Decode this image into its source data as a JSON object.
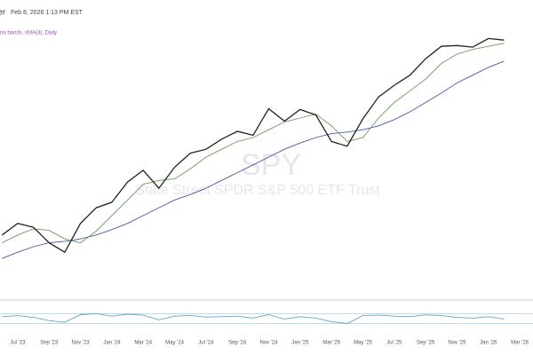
{
  "chart_data": {
    "type": "line",
    "header_fragment": "er",
    "timestamp": "Feb 8, 2026 1:13 PM EST",
    "legend_text": "na bands, sMA(4), Daily",
    "watermark_symbol": "SPY",
    "watermark_name": "State Street SPDR S&P 500 ETF Trust",
    "categories": [
      null,
      "Jul '23",
      null,
      "Sep '23",
      null,
      "Nov '23",
      null,
      "Jan '24",
      null,
      "Mar '24",
      null,
      "May '24",
      null,
      "Jul '24",
      null,
      "Sep '24",
      null,
      "Nov '24",
      null,
      "Jan '25",
      null,
      "Mar '25",
      null,
      "May '25",
      null,
      "Jul '25",
      null,
      "Sep '25",
      null,
      "Nov '25",
      null,
      "Jan '26",
      null,
      "Mar '26"
    ],
    "ylim": [
      400,
      730
    ],
    "series": [
      {
        "name": null,
        "color": "#222222",
        "values": [
          440,
          455,
          450,
          430,
          418,
          455,
          475,
          482,
          508,
          523,
          500,
          527,
          545,
          550,
          563,
          573,
          568,
          602,
          586,
          601,
          594,
          560,
          554,
          589,
          617,
          632,
          645,
          666,
          682,
          683,
          681,
          692,
          690,
          null
        ]
      },
      {
        "name": null,
        "color": "#6a9a5a",
        "values": [
          430,
          440,
          448,
          446,
          435,
          430,
          445,
          465,
          485,
          505,
          510,
          512,
          525,
          540,
          550,
          560,
          565,
          575,
          585,
          590,
          595,
          580,
          560,
          565,
          590,
          610,
          625,
          640,
          660,
          672,
          678,
          682,
          686,
          null
        ]
      },
      {
        "name": null,
        "color": "#4a56a8",
        "values": [
          410,
          418,
          425,
          430,
          432,
          435,
          440,
          447,
          455,
          465,
          475,
          485,
          492,
          500,
          510,
          520,
          530,
          540,
          550,
          558,
          565,
          570,
          572,
          575,
          580,
          588,
          598,
          610,
          622,
          635,
          645,
          655,
          663,
          null
        ]
      }
    ],
    "rsi": {
      "color": "#5aa6d6",
      "ylim": [
        0,
        100
      ],
      "band": [
        30,
        70
      ],
      "values": [
        58,
        62,
        55,
        42,
        35,
        66,
        70,
        60,
        68,
        64,
        45,
        60,
        63,
        56,
        58,
        60,
        52,
        66,
        48,
        58,
        52,
        38,
        30,
        62,
        64,
        60,
        58,
        65,
        62,
        55,
        52,
        58,
        48,
        null
      ]
    }
  }
}
